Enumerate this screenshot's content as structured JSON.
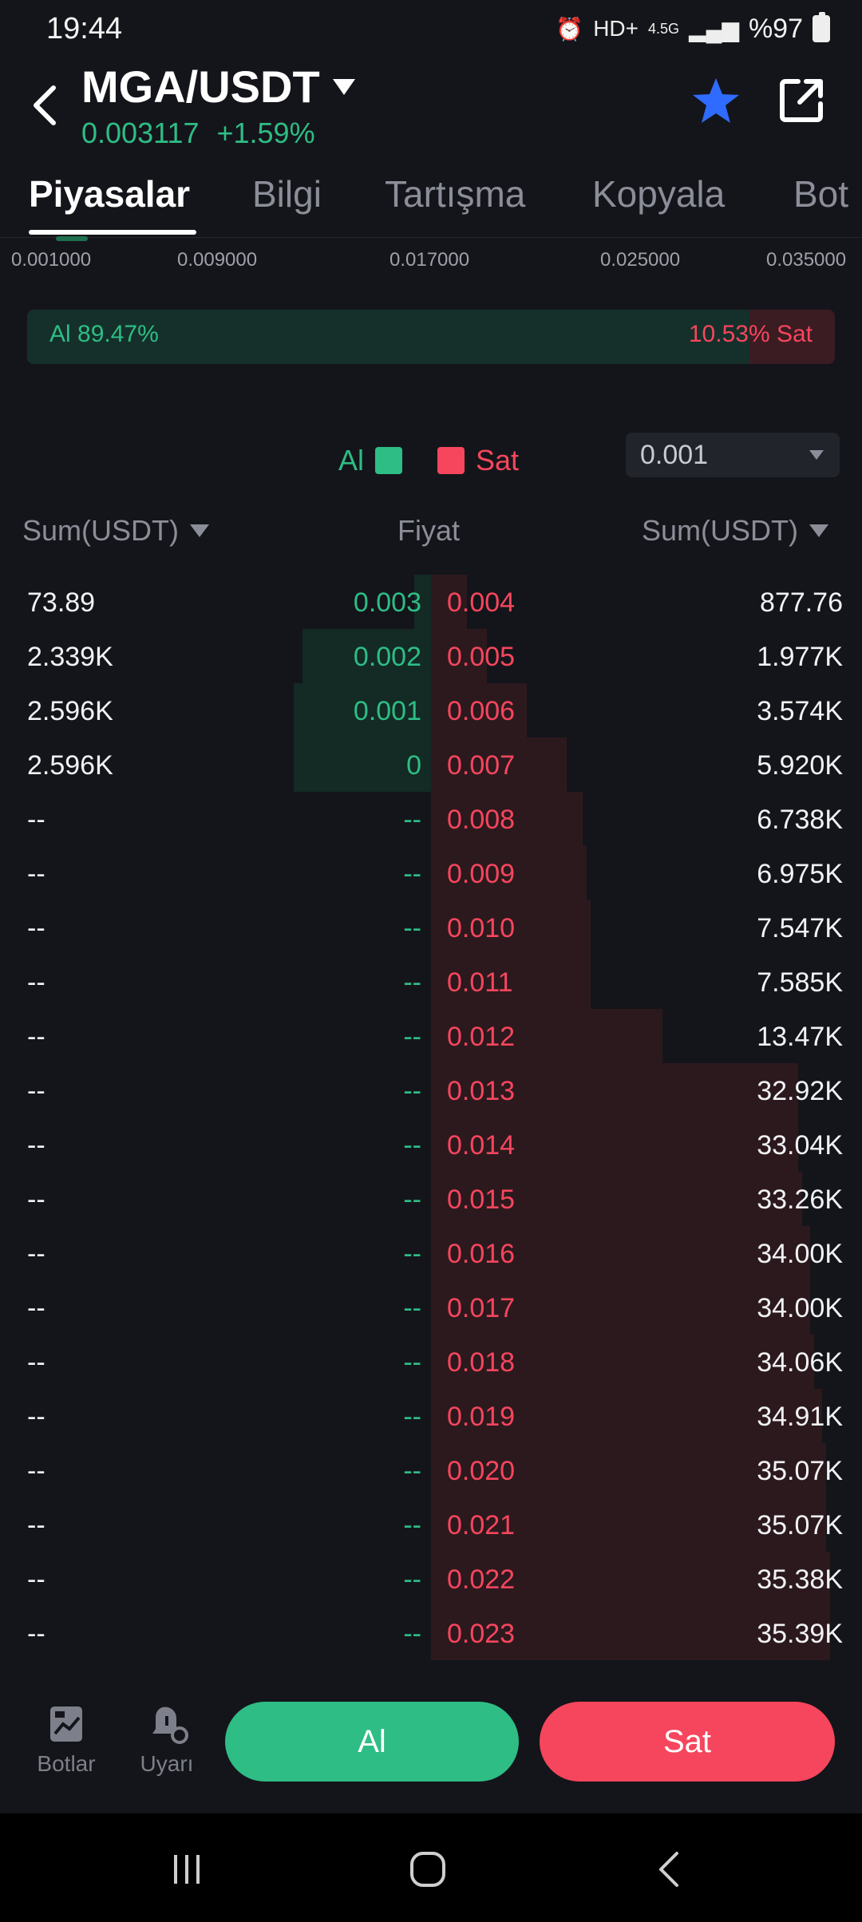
{
  "status": {
    "time": "19:44",
    "network": "4.5G",
    "battery": "%97"
  },
  "header": {
    "pair": "MGA/USDT",
    "price": "0.003117",
    "change": "+1.59%"
  },
  "tabs": [
    "Piyasalar",
    "Bilgi",
    "Tartışma",
    "Kopyala",
    "Bot"
  ],
  "depth_axis": [
    "0.001000",
    "0.009000",
    "0.017000",
    "0.025000",
    "0.035000"
  ],
  "ratio": {
    "buy_label": "Al 89.47%",
    "sell_label": "10.53% Sat",
    "buy_percent": 89.47
  },
  "legend": {
    "buy": "Al",
    "sell": "Sat"
  },
  "precision": {
    "value": "0.001"
  },
  "columns": {
    "left": "Sum(USDT)",
    "middle": "Fiyat",
    "right": "Sum(USDT)"
  },
  "book": {
    "rows": [
      {
        "buy_sum": "73.89",
        "buy_price": "0.003",
        "sell_price": "0.004",
        "sell_sum": "877.76",
        "buy_depth": 0.04,
        "sell_depth": 0.09
      },
      {
        "buy_sum": "2.339K",
        "buy_price": "0.002",
        "sell_price": "0.005",
        "sell_sum": "1.977K",
        "buy_depth": 0.31,
        "sell_depth": 0.14
      },
      {
        "buy_sum": "2.596K",
        "buy_price": "0.001",
        "sell_price": "0.006",
        "sell_sum": "3.574K",
        "buy_depth": 0.33,
        "sell_depth": 0.24
      },
      {
        "buy_sum": "2.596K",
        "buy_price": "0",
        "sell_price": "0.007",
        "sell_sum": "5.920K",
        "buy_depth": 0.33,
        "sell_depth": 0.34
      },
      {
        "buy_sum": "--",
        "buy_price": "--",
        "sell_price": "0.008",
        "sell_sum": "6.738K",
        "buy_depth": 0,
        "sell_depth": 0.38
      },
      {
        "buy_sum": "--",
        "buy_price": "--",
        "sell_price": "0.009",
        "sell_sum": "6.975K",
        "buy_depth": 0,
        "sell_depth": 0.39
      },
      {
        "buy_sum": "--",
        "buy_price": "--",
        "sell_price": "0.010",
        "sell_sum": "7.547K",
        "buy_depth": 0,
        "sell_depth": 0.4
      },
      {
        "buy_sum": "--",
        "buy_price": "--",
        "sell_price": "0.011",
        "sell_sum": "7.585K",
        "buy_depth": 0,
        "sell_depth": 0.4
      },
      {
        "buy_sum": "--",
        "buy_price": "--",
        "sell_price": "0.012",
        "sell_sum": "13.47K",
        "buy_depth": 0,
        "sell_depth": 0.58
      },
      {
        "buy_sum": "--",
        "buy_price": "--",
        "sell_price": "0.013",
        "sell_sum": "32.92K",
        "buy_depth": 0,
        "sell_depth": 0.92
      },
      {
        "buy_sum": "--",
        "buy_price": "--",
        "sell_price": "0.014",
        "sell_sum": "33.04K",
        "buy_depth": 0,
        "sell_depth": 0.92
      },
      {
        "buy_sum": "--",
        "buy_price": "--",
        "sell_price": "0.015",
        "sell_sum": "33.26K",
        "buy_depth": 0,
        "sell_depth": 0.93
      },
      {
        "buy_sum": "--",
        "buy_price": "--",
        "sell_price": "0.016",
        "sell_sum": "34.00K",
        "buy_depth": 0,
        "sell_depth": 0.95
      },
      {
        "buy_sum": "--",
        "buy_price": "--",
        "sell_price": "0.017",
        "sell_sum": "34.00K",
        "buy_depth": 0,
        "sell_depth": 0.95
      },
      {
        "buy_sum": "--",
        "buy_price": "--",
        "sell_price": "0.018",
        "sell_sum": "34.06K",
        "buy_depth": 0,
        "sell_depth": 0.96
      },
      {
        "buy_sum": "--",
        "buy_price": "--",
        "sell_price": "0.019",
        "sell_sum": "34.91K",
        "buy_depth": 0,
        "sell_depth": 0.98
      },
      {
        "buy_sum": "--",
        "buy_price": "--",
        "sell_price": "0.020",
        "sell_sum": "35.07K",
        "buy_depth": 0,
        "sell_depth": 0.99
      },
      {
        "buy_sum": "--",
        "buy_price": "--",
        "sell_price": "0.021",
        "sell_sum": "35.07K",
        "buy_depth": 0,
        "sell_depth": 0.99
      },
      {
        "buy_sum": "--",
        "buy_price": "--",
        "sell_price": "0.022",
        "sell_sum": "35.38K",
        "buy_depth": 0,
        "sell_depth": 1.0
      },
      {
        "buy_sum": "--",
        "buy_price": "--",
        "sell_price": "0.023",
        "sell_sum": "35.39K",
        "buy_depth": 0,
        "sell_depth": 1.0
      }
    ]
  },
  "bottom": {
    "bots": "Botlar",
    "alerts": "Uyarı",
    "buy": "Al",
    "sell": "Sat"
  },
  "colors": {
    "buy": "#2ebd85",
    "sell": "#f6465d",
    "accent_star": "#2f6bff"
  },
  "icons": [
    "back-arrow-icon",
    "dropdown-icon",
    "star-icon",
    "share-icon",
    "bots-icon",
    "alert-icon",
    "recent-apps-icon",
    "home-icon",
    "back-icon"
  ]
}
